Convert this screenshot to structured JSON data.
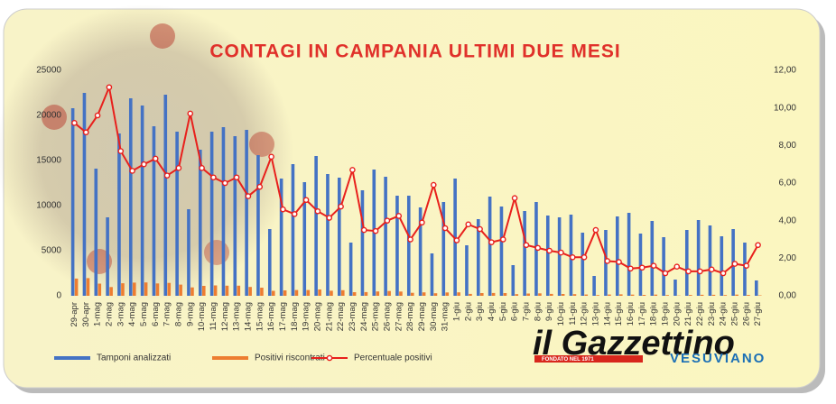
{
  "chart_data": {
    "type": "bar_line",
    "title": "CONTAGI IN CAMPANIA ULTIMI DUE MESI",
    "brand": {
      "name": "il Gazzettino",
      "founded": "FONDATO NEL 1971",
      "region": "VESUVIANO"
    },
    "categories": [
      "29-apr",
      "30-apr",
      "1-mag",
      "2-mag",
      "3-mag",
      "4-mag",
      "5-mag",
      "6-mag",
      "7-mag",
      "8-mag",
      "9-mag",
      "10-mag",
      "11-mag",
      "12-mag",
      "13-mag",
      "14-mag",
      "15-mag",
      "16-mag",
      "17-mag",
      "18-mag",
      "19-mag",
      "20-mag",
      "21-mag",
      "22-mag",
      "23-mag",
      "24-mag",
      "25-mag",
      "26-mag",
      "27-mag",
      "28-mag",
      "29-mag",
      "30-mag",
      "31-mag",
      "1-giu",
      "2-giu",
      "3-giu",
      "4-giu",
      "5-giu",
      "6-giu",
      "7-giu",
      "8-giu",
      "9-giu",
      "10-giu",
      "11-giu",
      "12-giu",
      "13-giu",
      "14-giu",
      "15-giu",
      "16-giu",
      "17-giu",
      "18-giu",
      "19-giu",
      "20-giu",
      "21-giu",
      "22-giu",
      "23-giu",
      "24-giu",
      "25-giu",
      "26-giu",
      "27-giu"
    ],
    "series": [
      {
        "name": "Tamponi analizzati",
        "color": "#4472c4",
        "kind": "bar",
        "values": [
          20800,
          22500,
          14100,
          8700,
          18000,
          21900,
          21100,
          18800,
          22300,
          18200,
          9600,
          16200,
          18200,
          18700,
          17700,
          18400,
          15600,
          7400,
          13000,
          14600,
          12600,
          15500,
          13500,
          13100,
          5900,
          11700,
          14000,
          13200,
          11100,
          11100,
          9800,
          4700,
          10400,
          13000,
          5600,
          8500,
          11000,
          9900,
          3400,
          9400,
          10400,
          8900,
          8700,
          9000,
          7000,
          2200,
          7300,
          8800,
          9200,
          6900,
          8300,
          6500,
          1800,
          7300,
          8400,
          7800,
          6600,
          7400,
          5900,
          1700
        ]
      },
      {
        "name": "Positivi riscontrati",
        "color": "#ed7d31",
        "kind": "bar",
        "values": [
          1910,
          1960,
          1350,
          970,
          1390,
          1460,
          1480,
          1370,
          1430,
          1240,
          930,
          1100,
          1150,
          1120,
          1120,
          980,
          900,
          550,
          600,
          640,
          640,
          700,
          560,
          620,
          400,
          410,
          480,
          530,
          470,
          330,
          380,
          280,
          370,
          380,
          210,
          300,
          310,
          300,
          180,
          250,
          270,
          210,
          200,
          180,
          140,
          80,
          140,
          160,
          130,
          100,
          130,
          80,
          30,
          90,
          110,
          110,
          80,
          130,
          90,
          50
        ]
      },
      {
        "name": "Percentuale positivi",
        "color": "#e8201c",
        "kind": "line",
        "axis": "y2",
        "values": [
          9.2,
          8.7,
          9.6,
          11.1,
          7.7,
          6.65,
          7.0,
          7.3,
          6.4,
          6.8,
          9.7,
          6.8,
          6.3,
          6.0,
          6.3,
          5.3,
          5.8,
          7.4,
          4.6,
          4.35,
          5.1,
          4.5,
          4.15,
          4.75,
          6.7,
          3.5,
          3.45,
          4.0,
          4.25,
          3.0,
          3.9,
          5.9,
          3.6,
          2.95,
          3.8,
          3.55,
          2.85,
          3.0,
          5.2,
          2.7,
          2.55,
          2.4,
          2.3,
          2.05,
          2.05,
          3.5,
          1.85,
          1.8,
          1.45,
          1.5,
          1.6,
          1.2,
          1.55,
          1.3,
          1.3,
          1.4,
          1.2,
          1.7,
          1.6,
          2.7
        ]
      }
    ],
    "ylim": [
      0,
      25000
    ],
    "yticks": [
      0,
      5000,
      10000,
      15000,
      20000,
      25000
    ],
    "y2lim": [
      0,
      12
    ],
    "y2ticks": [
      {
        "value": 0,
        "label": "0,00"
      },
      {
        "value": 2,
        "label": "2,00"
      },
      {
        "value": 4,
        "label": "4,00"
      },
      {
        "value": 6,
        "label": "6,00"
      },
      {
        "value": 8,
        "label": "8,00"
      },
      {
        "value": 10,
        "label": "10,00"
      },
      {
        "value": 12,
        "label": "12,00"
      }
    ],
    "legend": "bottom"
  }
}
